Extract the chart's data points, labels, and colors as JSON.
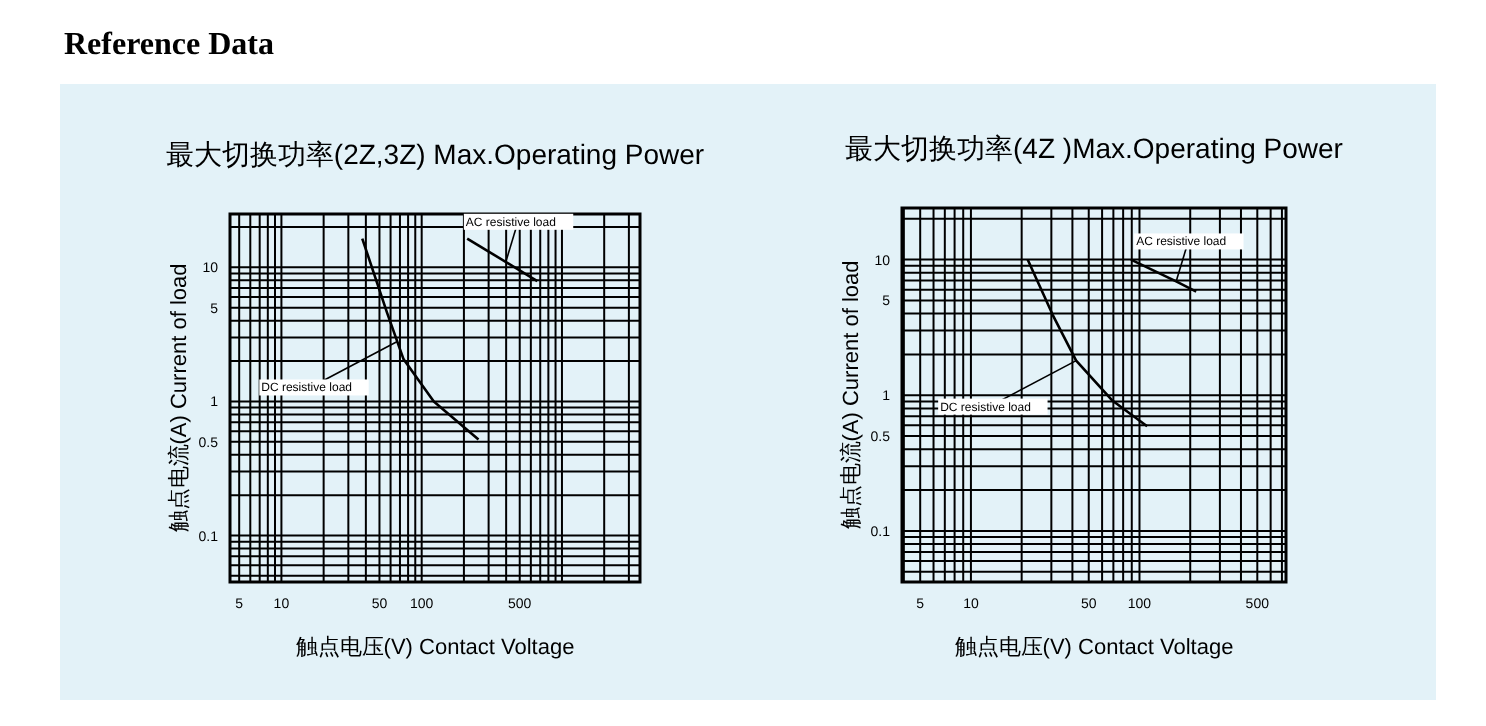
{
  "chart_data": [
    {
      "type": "line",
      "title": "最大切换功率(2Z,3Z) Max.Operating Power",
      "xlabel": "触点电压(V) Contact Voltage",
      "ylabel": "触点电流(A) Current of load",
      "log": "xy",
      "grid": true,
      "marker": "none",
      "line_style": "solid",
      "xlim": [
        4.3,
        3600
      ],
      "ylim": [
        0.045,
        25
      ],
      "xticks": [
        5,
        10,
        50,
        100,
        500
      ],
      "yticks": [
        0.1,
        0.5,
        1,
        5,
        10
      ],
      "series": [
        {
          "color": "#000000",
          "x": [
            211,
            667
          ],
          "values": [
            16.4,
            7.9
          ]
        },
        {
          "color": "#000000",
          "x": [
            37.7,
            56.6,
            74.3,
            122,
            254
          ],
          "values": [
            16.4,
            4.6,
            2.06,
            1.0,
            0.52
          ]
        }
      ],
      "annotations": [
        "Reference Data",
        {
          "text": "AC resistive load",
          "x": 398,
          "y": 11
        },
        {
          "text": "DC resistive load",
          "x": 67,
          "y": 2.8
        }
      ]
    },
    {
      "type": "line",
      "title": "最大切换功率(4Z )Max.Operating Power",
      "xlabel": "触点电压(V) Contact Voltage",
      "ylabel": "触点电流(A) Current of load",
      "log": "xy",
      "grid": true,
      "marker": "none",
      "line_style": "solid",
      "xlim": [
        3.9,
        740
      ],
      "ylim": [
        0.042,
        24
      ],
      "xticks": [
        5,
        10,
        50,
        100,
        500
      ],
      "yticks": [
        0.1,
        0.5,
        1,
        5,
        10
      ],
      "series": [
        {
          "color": "#000000",
          "x": [
            89,
            165,
            217
          ],
          "values": [
            10,
            6.9,
            5.8
          ]
        },
        {
          "color": "#000000",
          "x": [
            21.7,
            30.6,
            42.1,
            69.3,
            111
          ],
          "values": [
            10,
            3.9,
            1.8,
            0.91,
            0.59
          ]
        }
      ],
      "annotations": [
        {
          "text": "AC resistive load",
          "x": 165,
          "y": 6.9
        },
        {
          "text": "DC resistive load",
          "x": 42.1,
          "y": 1.8
        }
      ]
    }
  ]
}
